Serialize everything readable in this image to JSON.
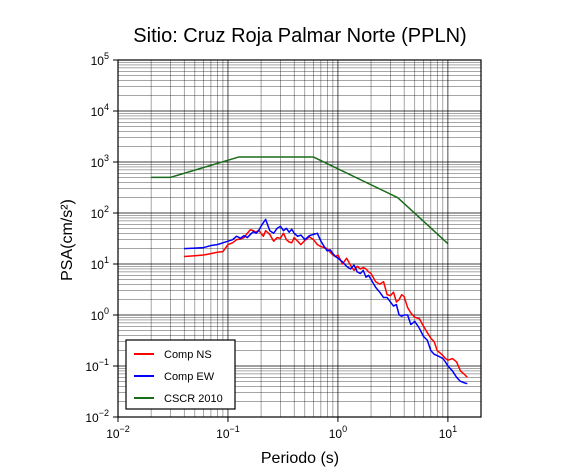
{
  "chart_data": {
    "type": "line",
    "title": "Sitio: Cruz Roja Palmar Norte (PPLN)",
    "xlabel": "Periodo (s)",
    "ylabel": "PSA(cm/s²)",
    "xscale": "log",
    "yscale": "log",
    "xlim": [
      0.01,
      20
    ],
    "ylim": [
      0.01,
      100000
    ],
    "grid": true,
    "legend_position": "bottom-left",
    "x_ticks": [
      {
        "base": "10",
        "exp": "−2",
        "value": 0.01
      },
      {
        "base": "10",
        "exp": "−1",
        "value": 0.1
      },
      {
        "base": "10",
        "exp": "0",
        "value": 1
      },
      {
        "base": "10",
        "exp": "1",
        "value": 10
      }
    ],
    "y_ticks": [
      {
        "base": "10",
        "exp": "−2",
        "value": 0.01
      },
      {
        "base": "10",
        "exp": "−1",
        "value": 0.1
      },
      {
        "base": "10",
        "exp": "0",
        "value": 1
      },
      {
        "base": "10",
        "exp": "1",
        "value": 10
      },
      {
        "base": "10",
        "exp": "2",
        "value": 100
      },
      {
        "base": "10",
        "exp": "3",
        "value": 1000
      },
      {
        "base": "10",
        "exp": "4",
        "value": 10000
      },
      {
        "base": "10",
        "exp": "5",
        "value": 100000
      }
    ],
    "series": [
      {
        "name": "Comp NS",
        "color": "#ff0000",
        "x": [
          0.04,
          0.05,
          0.06,
          0.07,
          0.08,
          0.09,
          0.1,
          0.11,
          0.12,
          0.13,
          0.14,
          0.15,
          0.16,
          0.17,
          0.18,
          0.19,
          0.2,
          0.21,
          0.22,
          0.24,
          0.26,
          0.28,
          0.3,
          0.32,
          0.34,
          0.36,
          0.38,
          0.4,
          0.43,
          0.46,
          0.5,
          0.55,
          0.6,
          0.65,
          0.7,
          0.75,
          0.8,
          0.85,
          0.9,
          0.95,
          1.0,
          1.1,
          1.2,
          1.3,
          1.4,
          1.5,
          1.6,
          1.7,
          1.8,
          1.9,
          2.0,
          2.2,
          2.4,
          2.6,
          2.8,
          3.0,
          3.2,
          3.4,
          3.6,
          3.8,
          4.0,
          4.3,
          4.6,
          5.0,
          5.5,
          6.0,
          6.5,
          7.0,
          7.5,
          8.0,
          8.5,
          9.0,
          9.5,
          10.0,
          11.0,
          12.0,
          13.0,
          14.0,
          15.0
        ],
        "y": [
          14,
          14.5,
          15,
          16,
          17,
          17.5,
          24,
          26,
          30,
          31,
          33,
          40,
          47,
          45,
          42,
          46,
          40,
          35,
          45,
          38,
          28,
          33,
          32,
          40,
          30,
          27,
          26,
          33,
          28,
          24,
          29,
          34,
          30,
          24,
          22,
          21,
          20,
          17,
          15,
          14,
          15,
          10,
          13,
          9.5,
          7.5,
          9,
          8,
          8.5,
          8,
          7,
          6.5,
          4.5,
          4,
          4.5,
          2.5,
          2.4,
          2.8,
          1.8,
          2,
          2.5,
          2.3,
          1.4,
          1.1,
          0.9,
          0.85,
          0.6,
          0.45,
          0.35,
          0.3,
          0.2,
          0.18,
          0.16,
          0.14,
          0.13,
          0.14,
          0.12,
          0.08,
          0.07,
          0.06
        ]
      },
      {
        "name": "Comp EW",
        "color": "#0000ff",
        "x": [
          0.04,
          0.05,
          0.06,
          0.07,
          0.08,
          0.09,
          0.1,
          0.11,
          0.12,
          0.13,
          0.14,
          0.15,
          0.16,
          0.17,
          0.18,
          0.19,
          0.2,
          0.21,
          0.22,
          0.24,
          0.26,
          0.28,
          0.3,
          0.32,
          0.34,
          0.36,
          0.38,
          0.4,
          0.43,
          0.46,
          0.5,
          0.55,
          0.6,
          0.65,
          0.7,
          0.75,
          0.8,
          0.85,
          0.9,
          0.95,
          1.0,
          1.1,
          1.2,
          1.3,
          1.4,
          1.5,
          1.6,
          1.7,
          1.8,
          1.9,
          2.0,
          2.2,
          2.4,
          2.6,
          2.8,
          3.0,
          3.2,
          3.4,
          3.6,
          3.8,
          4.0,
          4.3,
          4.6,
          5.0,
          5.5,
          6.0,
          6.5,
          7.0,
          7.5,
          8.0,
          8.5,
          9.0,
          9.5,
          10.0,
          11.0,
          12.0,
          13.0,
          14.0,
          15.0
        ],
        "y": [
          20,
          20.5,
          21,
          23,
          24,
          26,
          28,
          30,
          35,
          32,
          36,
          33,
          38,
          43,
          40,
          45,
          55,
          65,
          75,
          45,
          40,
          50,
          55,
          45,
          50,
          42,
          48,
          40,
          35,
          37,
          30,
          36,
          38,
          40,
          28,
          22,
          18,
          19,
          16,
          14,
          13,
          11,
          9,
          8,
          9.5,
          7,
          6.5,
          7.5,
          5.5,
          6,
          5,
          3.5,
          2.8,
          2.2,
          2.2,
          1.8,
          1.5,
          1.6,
          1.0,
          0.95,
          1.0,
          1.0,
          0.65,
          0.75,
          0.55,
          0.38,
          0.32,
          0.2,
          0.17,
          0.16,
          0.15,
          0.14,
          0.12,
          0.1,
          0.08,
          0.06,
          0.05,
          0.047,
          0.045
        ]
      },
      {
        "name": "CSCR 2010",
        "color": "#1a6b1a",
        "x": [
          0.02,
          0.03,
          0.125,
          0.6,
          3.5,
          10
        ],
        "y": [
          500,
          500,
          1250,
          1250,
          200,
          25
        ]
      }
    ]
  }
}
